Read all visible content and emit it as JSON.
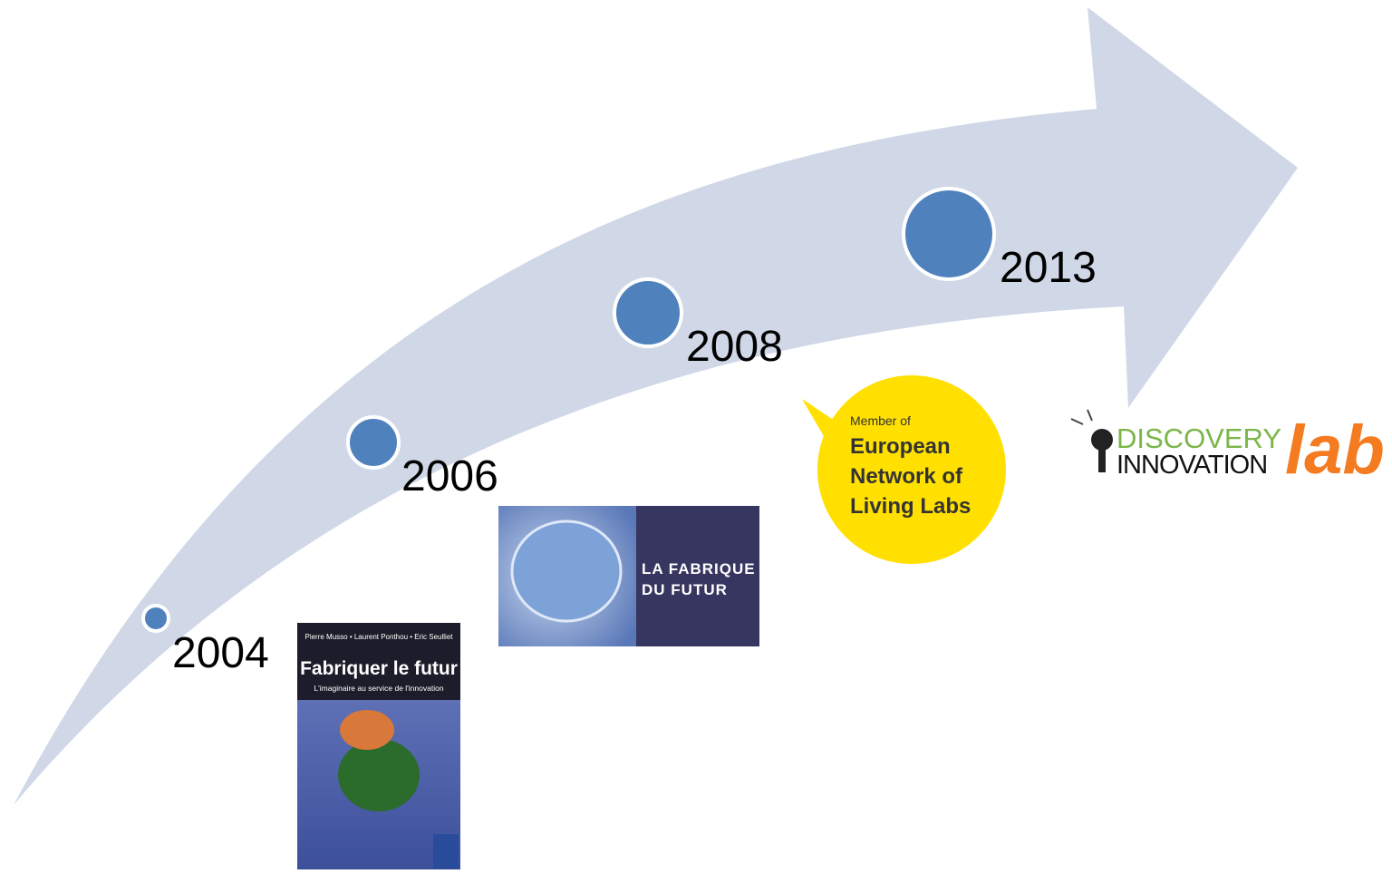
{
  "timeline": [
    {
      "year": "2004"
    },
    {
      "year": "2006"
    },
    {
      "year": "2008"
    },
    {
      "year": "2013"
    }
  ],
  "book": {
    "authors": "Pierre Musso • Laurent Ponthou • Eric Seulliet",
    "title": "Fabriquer le futur",
    "subtitle": "L'imaginaire au service de l'innovation"
  },
  "fabrique_logo": {
    "line1": "LA FABRIQUE",
    "line2": "DU FUTUR"
  },
  "enoll": {
    "line1": "Member of",
    "line2": "European",
    "line3": "Network of",
    "line4": "Living Labs"
  },
  "discovery_logo": {
    "line1": "DISCOVERY",
    "line2": "INNOVATION",
    "line3": "lab"
  }
}
